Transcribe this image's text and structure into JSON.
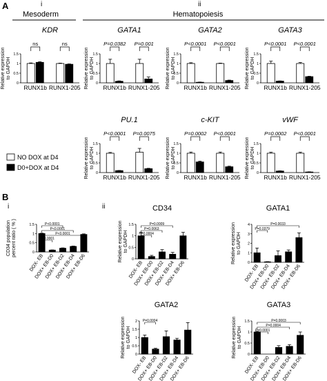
{
  "figure": {
    "panel_a": "A",
    "panel_b": "B",
    "a_sub_i": "i",
    "a_sub_ii": "ii",
    "a_left_heading": "Mesoderm",
    "a_right_heading": "Hematopoiesis",
    "b_sub_i": "i",
    "b_sub_ii": "ii",
    "legend": [
      {
        "label": "NO DOX at D4",
        "color": "#ffffff"
      },
      {
        "label": "D0+DOX at D4",
        "color": "#000000"
      }
    ]
  },
  "chart_data": [
    {
      "id": "A-KDR",
      "type": "bar",
      "title": "KDR",
      "title_italic": true,
      "ylabel": "Relative expression to GAPDH",
      "ylim": [
        0,
        1.5
      ],
      "yticks": [
        0,
        0.5,
        1,
        1.5
      ],
      "categories": [
        "RUNX1b",
        "RUNX1-205"
      ],
      "series": [
        {
          "name": "NO DOX at D4",
          "values": [
            1.0,
            1.0
          ],
          "errors": [
            0.03,
            0.02
          ]
        },
        {
          "name": "D0+DOX at D4",
          "values": [
            1.06,
            0.96
          ],
          "errors": [
            0.03,
            0.02
          ]
        }
      ],
      "annotations": [
        "ns",
        "ns"
      ]
    },
    {
      "id": "A-GATA1",
      "type": "bar",
      "title": "GATA1",
      "title_italic": true,
      "ylabel": "Relative expression to GAPDH",
      "ylim": [
        0,
        1.5
      ],
      "yticks": [
        0,
        0.5,
        1,
        1.5
      ],
      "categories": [
        "RUNX1b",
        "RUNX1-205"
      ],
      "series": [
        {
          "name": "NO DOX at D4",
          "values": [
            1.0,
            1.0
          ],
          "errors": [
            0.22,
            0.22
          ]
        },
        {
          "name": "D0+DOX at D4",
          "values": [
            0.08,
            0.2
          ],
          "errors": [
            0.02,
            0.1
          ]
        }
      ],
      "annotations": [
        "P=0.0382",
        "P=0.001"
      ]
    },
    {
      "id": "A-GATA2",
      "type": "bar",
      "title": "GATA2",
      "title_italic": true,
      "ylabel": "Relative expression to GAPDH",
      "ylim": [
        0,
        1.5
      ],
      "yticks": [
        0,
        0.5,
        1,
        1.5
      ],
      "categories": [
        "RUNX1b",
        "RUNX1-205"
      ],
      "series": [
        {
          "name": "NO DOX at D4",
          "values": [
            1.0,
            1.0
          ],
          "errors": [
            0.04,
            0.02
          ]
        },
        {
          "name": "D0+DOX at D4",
          "values": [
            0.03,
            0.12
          ],
          "errors": [
            0.01,
            0.02
          ]
        }
      ],
      "annotations": [
        "P<0.0001",
        "P<0.0001"
      ]
    },
    {
      "id": "A-GATA3",
      "type": "bar",
      "title": "GATA3",
      "title_italic": true,
      "ylabel": "Relative expression to GAPDH",
      "ylim": [
        0,
        1.5
      ],
      "yticks": [
        0,
        0.5,
        1,
        1.5
      ],
      "categories": [
        "RUNX1b",
        "RUNX1-205"
      ],
      "series": [
        {
          "name": "NO DOX at D4",
          "values": [
            1.0,
            1.0
          ],
          "errors": [
            0.12,
            0.05
          ]
        },
        {
          "name": "D0+DOX at D4",
          "values": [
            0.09,
            0.32
          ],
          "errors": [
            0.01,
            0.02
          ]
        }
      ],
      "annotations": [
        "P<0.0001",
        "P<0.0001"
      ]
    },
    {
      "id": "A-PU1",
      "type": "bar",
      "title": "PU.1",
      "title_italic": true,
      "ylabel": "Relative expression to GAPDH",
      "ylim": [
        0,
        1.5
      ],
      "yticks": [
        0,
        0.5,
        1,
        1.5
      ],
      "categories": [
        "RUNX1b",
        "RUNX1-205"
      ],
      "series": [
        {
          "name": "NO DOX at D4",
          "values": [
            1.0,
            1.05
          ],
          "errors": [
            0.04,
            0.2
          ]
        },
        {
          "name": "D0+DOX at D4",
          "values": [
            0.1,
            0.2
          ],
          "errors": [
            0.01,
            0.02
          ]
        }
      ],
      "annotations": [
        "P<0.0001",
        "P=0.0075"
      ]
    },
    {
      "id": "A-cKIT",
      "type": "bar",
      "title": "c-KIT",
      "title_italic": true,
      "ylabel": "Relative expression to GAPDH",
      "ylim": [
        0,
        1.5
      ],
      "yticks": [
        0,
        0.5,
        1,
        1.5
      ],
      "categories": [
        "RUNX1b",
        "RUNX1-205"
      ],
      "series": [
        {
          "name": "NO DOX at D4",
          "values": [
            1.0,
            1.0
          ],
          "errors": [
            0.06,
            0.06
          ]
        },
        {
          "name": "D0+DOX at D4",
          "values": [
            0.55,
            0.3
          ],
          "errors": [
            0.04,
            0.03
          ]
        }
      ],
      "annotations": [
        "P=0.0002",
        "P<0.0001"
      ]
    },
    {
      "id": "A-vWF",
      "type": "bar",
      "title": "vWF",
      "title_italic": true,
      "ylabel": "Relative expression to GAPDH",
      "ylim": [
        0,
        1.5
      ],
      "yticks": [
        0,
        0.5,
        1,
        1.5
      ],
      "categories": [
        "RUNX1b",
        "RUNX1-205"
      ],
      "series": [
        {
          "name": "NO DOX at D4",
          "values": [
            1.0,
            1.0
          ],
          "errors": [
            0.05,
            0.05
          ]
        },
        {
          "name": "D0+DOX at D4",
          "values": [
            0.08,
            0.03
          ],
          "errors": [
            0.01,
            0.01
          ]
        }
      ],
      "annotations": [
        "P=0.0002",
        "P<0.0001"
      ]
    },
    {
      "id": "B-CD34pop",
      "type": "bar",
      "title": "",
      "ylabel": "CD34 population percent ratio ( % )",
      "ylim": [
        0,
        1.5
      ],
      "yticks": [
        0,
        0.5,
        1,
        1.5
      ],
      "categories": [
        "DOX- EB",
        "DOX+ EB-D0",
        "DOX+ EB-D2",
        "DOX+ EB-D4",
        "DOX+ EB-D6"
      ],
      "values": [
        1.0,
        0.1,
        0.2,
        0.3,
        0.95
      ],
      "errors": [
        0.02,
        0.01,
        0.02,
        0.02,
        0.03
      ],
      "annotations": [
        "P<0.0001",
        "P<0.0001",
        "P<0.0001",
        "P<0.0001"
      ]
    },
    {
      "id": "B-CD34",
      "type": "bar",
      "title": "CD34",
      "ylabel": "Relative expression to GAPDH",
      "ylim": [
        0,
        1.5
      ],
      "yticks": [
        0,
        0.5,
        1,
        1.5
      ],
      "categories": [
        "DOX- EB",
        "DOX+ EB-D0",
        "DOX+ EB-D2",
        "DOX+ EB-D4",
        "DOX+ EB-D6"
      ],
      "values": [
        1.0,
        0.1,
        0.3,
        0.2,
        1.0
      ],
      "errors": [
        0.15,
        0.05,
        0.1,
        0.08,
        0.15
      ],
      "annotations": [
        "P=0.0009",
        "P=0.0063",
        "P=0.0004"
      ]
    },
    {
      "id": "B-GATA1",
      "type": "bar",
      "title": "GATA1",
      "ylabel": "Relative expression to GAPDH",
      "ylim": [
        0,
        4
      ],
      "yticks": [
        0,
        1,
        2,
        3,
        4
      ],
      "categories": [
        "DOX- EB",
        "DOX+ EB-D0",
        "DOX+ EB-D2",
        "DOX+ EB-D4",
        "DOX+ EB-D6"
      ],
      "values": [
        1.0,
        0.05,
        0.7,
        1.1,
        2.6
      ],
      "errors": [
        0.5,
        0.02,
        0.5,
        0.2,
        0.5
      ],
      "annotations": [
        "P=0.0033",
        "P=0.0379"
      ]
    },
    {
      "id": "B-GATA2",
      "type": "bar",
      "title": "GATA2",
      "ylabel": "Relative expression to GAPDH",
      "ylim": [
        0,
        2
      ],
      "yticks": [
        0,
        0.5,
        1,
        1.5,
        2
      ],
      "categories": [
        "DOX- EB",
        "DOX+ EB-D0",
        "DOX+ EB-D2",
        "DOX+ EB-D4",
        "DOX+ EB-D6"
      ],
      "values": [
        1.0,
        0.3,
        1.05,
        0.85,
        1.45
      ],
      "errors": [
        0.15,
        0.05,
        0.35,
        0.1,
        0.45
      ],
      "annotations": [
        "P=0.0004"
      ]
    },
    {
      "id": "B-GATA3",
      "type": "bar",
      "title": "GATA3",
      "ylabel": "Relative expression to GAPDH",
      "ylim": [
        0,
        1.5
      ],
      "yticks": [
        0,
        0.5,
        1,
        1.5
      ],
      "categories": [
        "DOX- EB",
        "DOX+ EB-D0",
        "DOX+ EB-D2",
        "DOX+ EB-D4",
        "DOX+ EB-D6"
      ],
      "values": [
        1.0,
        0.0,
        0.3,
        0.35,
        0.85
      ],
      "errors": [
        0.03,
        0.0,
        0.08,
        0.08,
        0.15
      ],
      "annotations": [
        "P=0.0003",
        "P=0.0004",
        "P=0.0001"
      ]
    }
  ]
}
